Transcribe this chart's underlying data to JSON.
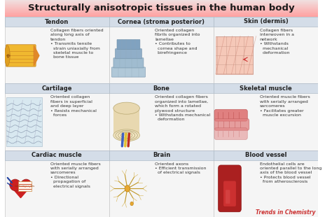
{
  "title": "Structurally anisotropic tissues in the human body",
  "title_bg_top": "#f5a0a0",
  "title_bg_bot": "#fde8e8",
  "title_fontsize": 9.5,
  "header_bg": "#d4dde8",
  "header_border": "#b0bcc8",
  "cell_bg": "#f7f7f7",
  "grid_border": "#c8c8c8",
  "footer_text": "Trends in Chemistry",
  "footer_color": "#cc3333",
  "footer_fontsize": 5.5,
  "body_fontsize": 4.5,
  "header_fontsize": 6.0,
  "cells": [
    {
      "row": 0,
      "col": 0,
      "header": "Tendon",
      "body_text": "Collagen fibers oriented\nalong long axis of\ntendon\n• Transmits tensile\n  strain uniaxially from\n  skeletal muscle to\n  bone tissue",
      "img_type": "tendon",
      "cell_bg": "#f5f5f5"
    },
    {
      "row": 0,
      "col": 1,
      "header": "Cornea (stroma posterior)",
      "body_text": "Oriented collagen\nfibrils organized into\nlamellae\n• Contributes to\n  cornea shape and\n  birefringence",
      "img_type": "cornea",
      "cell_bg": "#f5f5f5"
    },
    {
      "row": 0,
      "col": 2,
      "header": "Skin (dermis)",
      "body_text": "Collagen fibers\ninterwoven in a\nnetwork\n• Withstands\n  mechanical\n  deformation",
      "img_type": "skin",
      "cell_bg": "#f5f5f5"
    },
    {
      "row": 1,
      "col": 0,
      "header": "Cartilage",
      "body_text": "Oriented collagen\nfibers in superficial\nand deep layer\n• Resists mechanical\n  forces",
      "img_type": "cartilage",
      "cell_bg": "#f5f5f5"
    },
    {
      "row": 1,
      "col": 1,
      "header": "Bone",
      "body_text": "Oriented collagen fibers\norganized into lamellae,\nwhich form a rotated\nplywood structure\n• Withstands mechanical\n  deformation",
      "img_type": "bone",
      "cell_bg": "#f5f5f5"
    },
    {
      "row": 1,
      "col": 2,
      "header": "Skeletal muscle",
      "body_text": "Oriented muscle fibers\nwith serially arranged\nsarcomeres\n• Facilitates greater\n  muscle excursion",
      "img_type": "skeletal",
      "cell_bg": "#f5f5f5"
    },
    {
      "row": 2,
      "col": 0,
      "header": "Cardiac muscle",
      "body_text": "Oriented muscle fibers\nwith serially arranged\nsarcomeres\n• Directional\n  propagation of\n  electrical signals",
      "img_type": "cardiac",
      "cell_bg": "#f5f5f5"
    },
    {
      "row": 2,
      "col": 1,
      "header": "Brain",
      "body_text": "Oriented axons\n• Efficient transmission\n  of electrical signals",
      "img_type": "brain",
      "cell_bg": "#f5f5f5"
    },
    {
      "row": 2,
      "col": 2,
      "header": "Blood vessel",
      "body_text": "Endothelial cells are\noriented parallel to the long\naxis of the blood vessel\n• Protects blood vessel\n  from atherosclerosis",
      "img_type": "vessel",
      "cell_bg": "#f5f5f5"
    }
  ]
}
